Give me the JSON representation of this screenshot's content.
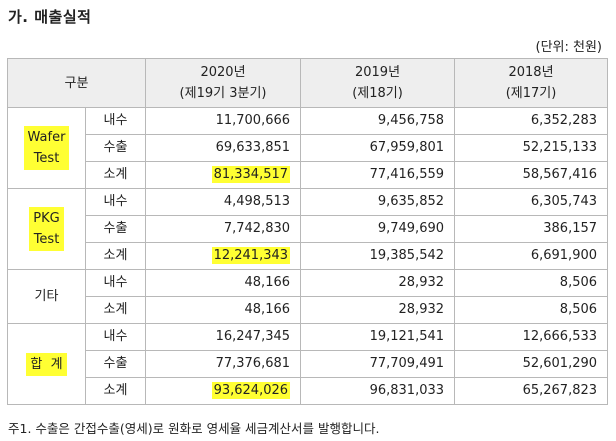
{
  "title": "가. 매출실적",
  "unit": "(단위: 천원)",
  "table": {
    "header": {
      "category": "구분",
      "col2020_line1": "2020년",
      "col2020_line2": "(제19기 3분기)",
      "col2019_line1": "2019년",
      "col2019_line2": "(제18기)",
      "col2018_line1": "2018년",
      "col2018_line2": "(제17기)"
    },
    "groups": [
      {
        "label_line1": "Wafer",
        "label_line2": "Test",
        "rows": [
          {
            "sub": "내수",
            "v2020": "11,700,666",
            "v2019": "9,456,758",
            "v2018": "6,352,283"
          },
          {
            "sub": "수출",
            "v2020": "69,633,851",
            "v2019": "67,959,801",
            "v2018": "52,215,133"
          },
          {
            "sub": "소계",
            "v2020": "81,334,517",
            "v2019": "77,416,559",
            "v2018": "58,567,416"
          }
        ]
      },
      {
        "label_line1": "PKG",
        "label_line2": "Test",
        "rows": [
          {
            "sub": "내수",
            "v2020": "4,498,513",
            "v2019": "9,635,852",
            "v2018": "6,305,743"
          },
          {
            "sub": "수출",
            "v2020": "7,742,830",
            "v2019": "9,749,690",
            "v2018": "386,157"
          },
          {
            "sub": "소계",
            "v2020": "12,241,343",
            "v2019": "19,385,542",
            "v2018": "6,691,900"
          }
        ]
      },
      {
        "label_line1": "기타",
        "rows": [
          {
            "sub": "내수",
            "v2020": "48,166",
            "v2019": "28,932",
            "v2018": "8,506"
          },
          {
            "sub": "소계",
            "v2020": "48,166",
            "v2019": "28,932",
            "v2018": "8,506"
          }
        ]
      },
      {
        "label_line1": "합  계",
        "rows": [
          {
            "sub": "내수",
            "v2020": "16,247,345",
            "v2019": "19,121,541",
            "v2018": "12,666,533"
          },
          {
            "sub": "수출",
            "v2020": "77,376,681",
            "v2019": "77,709,491",
            "v2018": "52,601,290"
          },
          {
            "sub": "소계",
            "v2020": "93,624,026",
            "v2019": "96,831,033",
            "v2018": "65,267,823"
          }
        ]
      }
    ]
  },
  "footnote": "주1. 수출은 간접수출(영세)로 원화로 영세율 세금계산서를 발행합니다.",
  "colors": {
    "highlight": "#ffff33",
    "header_bg": "#eeeeee",
    "border": "#b8b8b8"
  }
}
